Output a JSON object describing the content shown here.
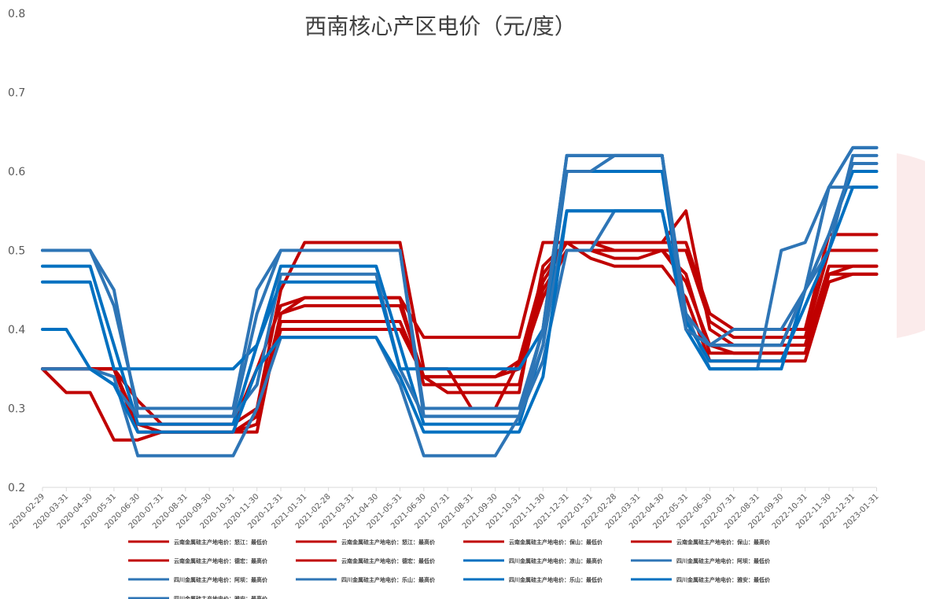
{
  "chart_data": {
    "type": "line",
    "title": "西南核心产区电价（元/度）",
    "ylim": [
      0.2,
      0.8
    ],
    "yticks": [
      "0.2",
      "0.3",
      "0.4",
      "0.5",
      "0.6",
      "0.7",
      "0.8"
    ],
    "grid": false,
    "legend_position": "bottom",
    "x": [
      "2020-02-29",
      "2020-03-31",
      "2020-04-30",
      "2020-05-31",
      "2020-06-30",
      "2020-07-31",
      "2020-08-31",
      "2020-09-30",
      "2020-10-31",
      "2020-11-30",
      "2020-12-31",
      "2021-01-31",
      "2021-02-28",
      "2021-03-31",
      "2021-04-30",
      "2021-05-31",
      "2021-06-30",
      "2021-07-31",
      "2021-08-31",
      "2021-09-30",
      "2021-10-31",
      "2021-11-30",
      "2021-12-31",
      "2022-01-31",
      "2022-02-28",
      "2022-03-31",
      "2022-04-30",
      "2022-05-31",
      "2022-06-30",
      "2022-07-31",
      "2022-08-31",
      "2022-09-30",
      "2022-10-31",
      "2022-11-30",
      "2022-12-31",
      "2023-01-31"
    ],
    "series": [
      {
        "name": "云南金属硅主产地电价：怒江：最低价",
        "color": "#c00000",
        "values": [
          0.35,
          0.32,
          0.32,
          0.26,
          0.26,
          0.27,
          0.27,
          0.27,
          0.27,
          0.27,
          0.42,
          0.43,
          0.43,
          0.43,
          0.43,
          0.43,
          0.34,
          0.32,
          0.32,
          0.32,
          0.32,
          0.48,
          0.51,
          0.49,
          0.48,
          0.48,
          0.48,
          0.44,
          0.36,
          0.36,
          0.36,
          0.36,
          0.36,
          0.46,
          0.47,
          0.47
        ]
      },
      {
        "name": "云南金属硅主产地电价：怒江：最高价",
        "color": "#c00000",
        "values": [
          0.35,
          0.35,
          0.35,
          0.35,
          0.31,
          0.28,
          0.28,
          0.28,
          0.28,
          0.35,
          0.43,
          0.44,
          0.44,
          0.44,
          0.44,
          0.44,
          0.39,
          0.39,
          0.39,
          0.39,
          0.39,
          0.51,
          0.51,
          0.51,
          0.51,
          0.51,
          0.51,
          0.51,
          0.42,
          0.4,
          0.4,
          0.4,
          0.4,
          0.52,
          0.52,
          0.52
        ]
      },
      {
        "name": "云南金属硅主产地电价：保山：最低价",
        "color": "#c00000",
        "values": [
          0.35,
          0.35,
          0.35,
          0.35,
          0.27,
          0.27,
          0.27,
          0.27,
          0.27,
          0.29,
          0.4,
          0.4,
          0.4,
          0.4,
          0.4,
          0.4,
          0.34,
          0.34,
          0.34,
          0.34,
          0.36,
          0.45,
          0.5,
          0.5,
          0.49,
          0.49,
          0.5,
          0.46,
          0.38,
          0.37,
          0.37,
          0.37,
          0.37,
          0.47,
          0.48,
          0.48
        ]
      },
      {
        "name": "云南金属硅主产地电价：保山：最高价",
        "color": "#c00000",
        "values": [
          0.35,
          0.35,
          0.35,
          0.35,
          0.28,
          0.28,
          0.28,
          0.28,
          0.28,
          0.3,
          0.45,
          0.51,
          0.51,
          0.51,
          0.51,
          0.51,
          0.35,
          0.35,
          0.3,
          0.3,
          0.36,
          0.47,
          0.51,
          0.51,
          0.5,
          0.5,
          0.5,
          0.5,
          0.41,
          0.39,
          0.39,
          0.39,
          0.39,
          0.5,
          0.5,
          0.5
        ]
      },
      {
        "name": "云南金属硅主产地电价：德宏：最高价",
        "color": "#c00000",
        "values": [
          0.35,
          0.35,
          0.35,
          0.35,
          0.28,
          0.27,
          0.27,
          0.27,
          0.27,
          0.29,
          0.42,
          0.44,
          0.44,
          0.44,
          0.44,
          0.44,
          0.33,
          0.33,
          0.33,
          0.33,
          0.33,
          0.46,
          0.51,
          0.51,
          0.51,
          0.51,
          0.51,
          0.55,
          0.4,
          0.38,
          0.38,
          0.38,
          0.38,
          0.48,
          0.48,
          0.48
        ]
      },
      {
        "name": "云南金属硅主产地电价：德宏：最低价",
        "color": "#c00000",
        "values": [
          0.35,
          0.35,
          0.35,
          0.35,
          0.27,
          0.27,
          0.27,
          0.27,
          0.27,
          0.28,
          0.41,
          0.41,
          0.41,
          0.41,
          0.41,
          0.41,
          0.34,
          0.34,
          0.34,
          0.34,
          0.35,
          0.44,
          0.5,
          0.5,
          0.5,
          0.5,
          0.5,
          0.47,
          0.37,
          0.37,
          0.37,
          0.37,
          0.37,
          0.47,
          0.47,
          0.47
        ]
      },
      {
        "name": "四川金属硅主产地电价：凉山：最高价",
        "color": "#0070c0",
        "values": [
          0.48,
          0.48,
          0.48,
          0.38,
          0.28,
          0.28,
          0.28,
          0.28,
          0.28,
          0.38,
          0.48,
          0.48,
          0.48,
          0.48,
          0.48,
          0.38,
          0.28,
          0.28,
          0.28,
          0.28,
          0.28,
          0.38,
          0.6,
          0.6,
          0.6,
          0.6,
          0.6,
          0.4,
          0.38,
          0.38,
          0.38,
          0.38,
          0.45,
          0.52,
          0.6,
          0.6
        ]
      },
      {
        "name": "四川金属硅主产地电价：阿坝：最低价",
        "color": "#2e75b6",
        "values": [
          0.35,
          0.35,
          0.35,
          0.34,
          0.24,
          0.24,
          0.24,
          0.24,
          0.24,
          0.3,
          0.39,
          0.39,
          0.39,
          0.39,
          0.39,
          0.33,
          0.24,
          0.24,
          0.24,
          0.24,
          0.29,
          0.36,
          0.5,
          0.5,
          0.55,
          0.55,
          0.55,
          0.42,
          0.35,
          0.35,
          0.35,
          0.5,
          0.51,
          0.58,
          0.58,
          0.58
        ]
      },
      {
        "name": "四川金属硅主产地电价：阿坝：最高价",
        "color": "#2e75b6",
        "values": [
          0.5,
          0.5,
          0.5,
          0.43,
          0.3,
          0.3,
          0.3,
          0.3,
          0.3,
          0.45,
          0.5,
          0.5,
          0.5,
          0.5,
          0.5,
          0.5,
          0.3,
          0.3,
          0.3,
          0.3,
          0.3,
          0.4,
          0.6,
          0.6,
          0.62,
          0.62,
          0.62,
          0.42,
          0.38,
          0.4,
          0.4,
          0.4,
          0.45,
          0.5,
          0.62,
          0.62
        ]
      },
      {
        "name": "四川金属硅主产地电价：乐山：最高价",
        "color": "#2e75b6",
        "values": [
          0.35,
          0.35,
          0.35,
          0.33,
          0.29,
          0.29,
          0.29,
          0.29,
          0.29,
          0.33,
          0.47,
          0.47,
          0.47,
          0.47,
          0.47,
          0.35,
          0.29,
          0.29,
          0.29,
          0.29,
          0.29,
          0.38,
          0.55,
          0.55,
          0.55,
          0.55,
          0.55,
          0.4,
          0.38,
          0.38,
          0.38,
          0.38,
          0.45,
          0.52,
          0.61,
          0.61
        ]
      },
      {
        "name": "四川金属硅主产地电价：乐山：最低价",
        "color": "#0070c0",
        "values": [
          0.4,
          0.4,
          0.35,
          0.33,
          0.27,
          0.27,
          0.27,
          0.27,
          0.27,
          0.35,
          0.39,
          0.39,
          0.39,
          0.39,
          0.39,
          0.34,
          0.27,
          0.27,
          0.27,
          0.27,
          0.27,
          0.34,
          0.55,
          0.55,
          0.55,
          0.55,
          0.55,
          0.41,
          0.36,
          0.36,
          0.36,
          0.36,
          0.43,
          0.5,
          0.58,
          0.58
        ]
      },
      {
        "name": "四川金属硅主产地电价：雅安：最低价",
        "color": "#0070c0",
        "values": [
          0.46,
          0.46,
          0.46,
          0.35,
          0.35,
          0.35,
          0.35,
          0.35,
          0.35,
          0.38,
          0.46,
          0.46,
          0.46,
          0.46,
          0.46,
          0.35,
          0.35,
          0.35,
          0.35,
          0.35,
          0.35,
          0.4,
          0.62,
          0.62,
          0.62,
          0.62,
          0.62,
          0.4,
          0.35,
          0.35,
          0.35,
          0.35,
          0.45,
          0.58,
          0.63,
          0.63
        ]
      },
      {
        "name": "四川金属硅主产地电价：雅安：最高价",
        "color": "#2e75b6",
        "values": [
          0.5,
          0.5,
          0.5,
          0.45,
          0.29,
          0.29,
          0.29,
          0.29,
          0.29,
          0.42,
          0.5,
          0.5,
          0.5,
          0.5,
          0.5,
          0.5,
          0.29,
          0.29,
          0.29,
          0.29,
          0.29,
          0.4,
          0.62,
          0.62,
          0.62,
          0.62,
          0.62,
          0.4,
          0.38,
          0.38,
          0.38,
          0.38,
          0.45,
          0.58,
          0.63,
          0.63
        ]
      }
    ]
  }
}
